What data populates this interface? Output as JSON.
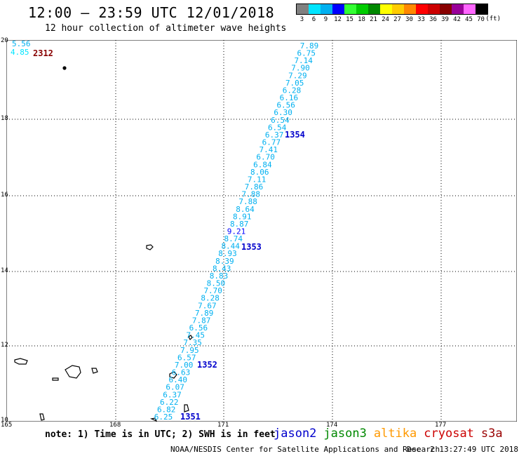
{
  "header": {
    "title": "12:00 — 23:59 UTC 12/01/2018",
    "subtitle": "12 hour collection of altimeter wave heights"
  },
  "legend": {
    "labels": [
      "3",
      "6",
      "9",
      "12",
      "15",
      "18",
      "21",
      "24",
      "27",
      "30",
      "33",
      "36",
      "39",
      "42",
      "45",
      "70"
    ],
    "unit": "(ft)",
    "colors": [
      "#808080",
      "#00e5ff",
      "#00b0f0",
      "#0000ff",
      "#33ff33",
      "#00cc00",
      "#008800",
      "#ffff00",
      "#ffcc00",
      "#ff8800",
      "#ff0000",
      "#cc0000",
      "#880000",
      "#990099",
      "#ff66ff",
      "#000000"
    ]
  },
  "axes": {
    "lat_labels": [
      "20",
      "18",
      "16",
      "14",
      "12",
      "10"
    ],
    "lon_labels": [
      "165",
      "168",
      "171",
      "174",
      "177"
    ]
  },
  "swh_values": [
    "7.89",
    "6.75",
    "7.14",
    "7.90",
    "7.29",
    "7.05",
    "6.28",
    "6.16",
    "6.56",
    "6.30",
    "6.54",
    "6.54",
    "6.37",
    "6.77",
    "7.41",
    "6.70",
    "6.84",
    "8.06",
    "7.11",
    "7.86",
    "7.88",
    "7.88",
    "8.64",
    "8.91",
    "8.87",
    "9.21",
    "8.74",
    "8.44",
    "8.93",
    "8.39",
    "8.43",
    "8.83",
    "8.50",
    "7.70",
    "8.28",
    "7.67",
    "7.89",
    "7.87",
    "6.56",
    "7.45",
    "7.35",
    "7.95",
    "6.57",
    "7.00",
    "6.63",
    "6.40",
    "6.07",
    "6.37",
    "6.22",
    "6.82",
    "6.25"
  ],
  "pass_labels": {
    "p1354": "1354",
    "p1353": "1353",
    "p1352": "1352",
    "p1351": "1351",
    "p2312": "2312"
  },
  "corner_values": {
    "a": "5.56",
    "b": "4.85"
  },
  "footer": {
    "note": "note: 1) Time is in UTC; 2) SWH is in feet",
    "satellites": [
      {
        "name": "jason2",
        "color": "#0000cc"
      },
      {
        "name": "jason3",
        "color": "#008800"
      },
      {
        "name": "altika",
        "color": "#ff9900"
      },
      {
        "name": "cryosat",
        "color": "#cc0000"
      },
      {
        "name": "s3a",
        "color": "#990000"
      }
    ],
    "credit": "NOAA/NESDIS Center for Satellite Applications and Research",
    "timestamp": "Dec  2 13:27:49 UTC 2018"
  }
}
